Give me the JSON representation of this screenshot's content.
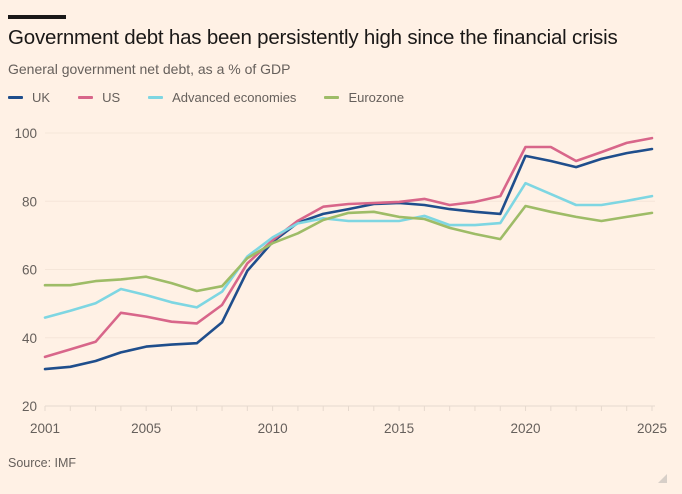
{
  "header": {
    "title": "Government debt has been persistently high since the financial crisis",
    "subtitle": "General government net debt, as a % of GDP"
  },
  "footer": {
    "source": "Source: IMF"
  },
  "chart_data": {
    "type": "line",
    "title": "Government debt has been persistently high since the financial crisis",
    "subtitle": "General government net debt, as a % of GDP",
    "xlabel": "",
    "ylabel": "",
    "x": [
      2001,
      2002,
      2003,
      2004,
      2005,
      2006,
      2007,
      2008,
      2009,
      2010,
      2011,
      2012,
      2013,
      2014,
      2015,
      2016,
      2017,
      2018,
      2019,
      2020,
      2021,
      2022,
      2023,
      2024,
      2025
    ],
    "xlim": [
      2001,
      2025
    ],
    "ylim": [
      20,
      100
    ],
    "x_ticks": [
      2001,
      2005,
      2010,
      2015,
      2020,
      2025
    ],
    "y_ticks": [
      20,
      40,
      60,
      80,
      100
    ],
    "grid": true,
    "legend_position": "top-left",
    "series": [
      {
        "name": "UK",
        "color": "#1f4e8c",
        "values": [
          30.8,
          31.5,
          33.2,
          35.7,
          37.4,
          38.0,
          38.4,
          44.5,
          59.6,
          68.1,
          73.7,
          76.3,
          77.7,
          79.2,
          79.5,
          78.9,
          77.7,
          76.9,
          76.3,
          93.3,
          91.8,
          90.0,
          92.4,
          94.1,
          95.3
        ]
      },
      {
        "name": "US",
        "color": "#d8668a",
        "values": [
          34.4,
          36.6,
          38.8,
          47.3,
          46.2,
          44.7,
          44.2,
          49.6,
          61.8,
          68.6,
          74.3,
          78.4,
          79.2,
          79.5,
          79.8,
          80.7,
          78.9,
          79.8,
          81.5,
          95.9,
          95.9,
          91.8,
          94.4,
          97.1,
          98.5
        ]
      },
      {
        "name": "Advanced economies",
        "color": "#7ed6e2",
        "values": [
          45.9,
          47.9,
          50.1,
          54.3,
          52.5,
          50.4,
          48.9,
          53.5,
          63.8,
          69.4,
          73.5,
          75.0,
          74.2,
          74.2,
          74.2,
          75.7,
          73.0,
          73.0,
          73.6,
          85.3,
          82.1,
          78.9,
          78.9,
          80.1,
          81.5
        ]
      },
      {
        "name": "Eurozone",
        "color": "#9ebc67",
        "values": [
          55.4,
          55.4,
          56.6,
          57.1,
          57.9,
          56.0,
          53.7,
          55.1,
          63.3,
          67.7,
          70.6,
          74.5,
          76.6,
          76.9,
          75.4,
          74.8,
          72.2,
          70.4,
          68.9,
          78.6,
          76.9,
          75.4,
          74.2,
          75.4,
          76.6
        ]
      }
    ]
  }
}
